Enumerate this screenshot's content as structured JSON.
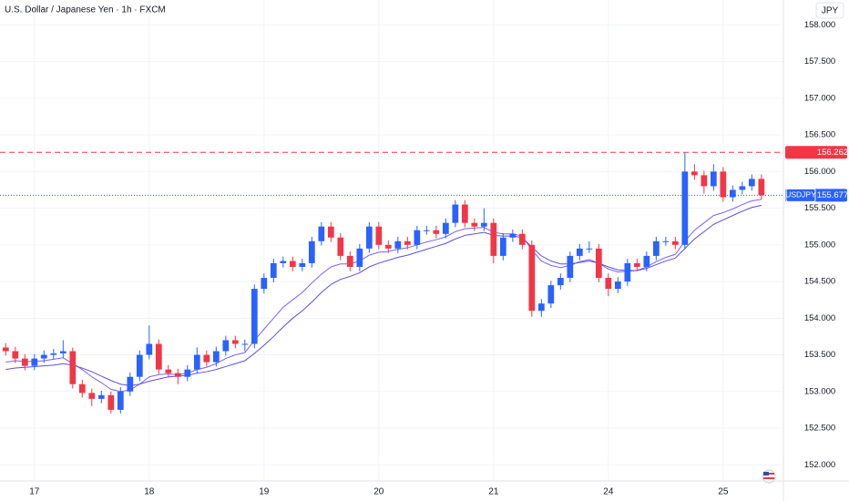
{
  "chart_data": {
    "type": "candlestick",
    "title": "U.S. Dollar / Japanese Yen · 1h · FXCM",
    "currency": "JPY",
    "symbol": "USDJPY",
    "up_color": "#2962ff",
    "down_color": "#f23645",
    "grid": true,
    "xlim": [
      -0.6,
      81.3
    ],
    "ylim": [
      151.78,
      158.34
    ],
    "xticks": [
      {
        "value": 3,
        "label": "17"
      },
      {
        "value": 15,
        "label": "18"
      },
      {
        "value": 27,
        "label": "19"
      },
      {
        "value": 39,
        "label": "20"
      },
      {
        "value": 51,
        "label": "21"
      },
      {
        "value": 63,
        "label": "24"
      },
      {
        "value": 75,
        "label": "25"
      }
    ],
    "yticks": [
      {
        "value": 152,
        "label": "152.000"
      },
      {
        "value": 152.5,
        "label": "152.500"
      },
      {
        "value": 153,
        "label": "153.000"
      },
      {
        "value": 153.5,
        "label": "153.500"
      },
      {
        "value": 154,
        "label": "154.000"
      },
      {
        "value": 154.5,
        "label": "154.500"
      },
      {
        "value": 155,
        "label": "155.000"
      },
      {
        "value": 155.5,
        "label": "155.500"
      },
      {
        "value": 156,
        "label": "156.000"
      },
      {
        "value": 156.5,
        "label": "156.500"
      },
      {
        "value": 157,
        "label": "157.000"
      },
      {
        "value": 157.5,
        "label": "157.500"
      },
      {
        "value": 158,
        "label": "158.000"
      }
    ],
    "ohlc": [
      [
        153.6,
        153.66,
        153.49,
        153.55
      ],
      [
        153.55,
        153.61,
        153.39,
        153.45
      ],
      [
        153.45,
        153.51,
        153.29,
        153.35
      ],
      [
        153.35,
        153.51,
        153.29,
        153.45
      ],
      [
        153.45,
        153.56,
        153.39,
        153.5
      ],
      [
        153.5,
        153.58,
        153.44,
        153.52
      ],
      [
        153.52,
        153.7,
        153.46,
        153.55
      ],
      [
        153.55,
        153.6,
        153.04,
        153.1
      ],
      [
        153.1,
        153.16,
        152.92,
        152.98
      ],
      [
        152.98,
        153.04,
        152.8,
        152.9
      ],
      [
        152.9,
        153.01,
        152.84,
        152.95
      ],
      [
        152.95,
        153.0,
        152.7,
        152.75
      ],
      [
        152.75,
        153.06,
        152.7,
        153.0
      ],
      [
        153.0,
        153.26,
        152.94,
        153.2
      ],
      [
        153.2,
        153.56,
        153.14,
        153.5
      ],
      [
        153.5,
        153.9,
        153.44,
        153.65
      ],
      [
        153.65,
        153.71,
        153.24,
        153.3
      ],
      [
        153.3,
        153.36,
        153.19,
        153.25
      ],
      [
        153.25,
        153.31,
        153.1,
        153.2
      ],
      [
        153.2,
        153.36,
        153.14,
        153.3
      ],
      [
        153.3,
        153.6,
        153.24,
        153.5
      ],
      [
        153.5,
        153.56,
        153.34,
        153.4
      ],
      [
        153.4,
        153.61,
        153.34,
        153.55
      ],
      [
        153.55,
        153.76,
        153.49,
        153.7
      ],
      [
        153.7,
        153.76,
        153.59,
        153.65
      ],
      [
        153.65,
        153.71,
        153.55,
        153.65
      ],
      [
        153.65,
        154.46,
        153.59,
        154.4
      ],
      [
        154.4,
        154.61,
        154.34,
        154.55
      ],
      [
        154.55,
        154.81,
        154.49,
        154.75
      ],
      [
        154.75,
        154.84,
        154.69,
        154.78
      ],
      [
        154.78,
        154.84,
        154.64,
        154.7
      ],
      [
        154.7,
        154.81,
        154.64,
        154.75
      ],
      [
        154.75,
        155.11,
        154.69,
        155.05
      ],
      [
        155.05,
        155.31,
        154.99,
        155.25
      ],
      [
        155.25,
        155.31,
        155.04,
        155.1
      ],
      [
        155.1,
        155.16,
        154.79,
        154.85
      ],
      [
        154.85,
        154.91,
        154.64,
        154.7
      ],
      [
        154.7,
        155.01,
        154.64,
        154.95
      ],
      [
        154.95,
        155.31,
        154.89,
        155.25
      ],
      [
        155.25,
        155.31,
        154.94,
        155.0
      ],
      [
        155.0,
        155.06,
        154.89,
        154.95
      ],
      [
        154.95,
        155.11,
        154.89,
        155.05
      ],
      [
        155.05,
        155.11,
        154.94,
        155.0
      ],
      [
        155.0,
        155.26,
        154.94,
        155.2
      ],
      [
        155.2,
        155.26,
        155.14,
        155.2
      ],
      [
        155.2,
        155.26,
        155.09,
        155.15
      ],
      [
        155.15,
        155.36,
        155.09,
        155.3
      ],
      [
        155.3,
        155.61,
        155.24,
        155.55
      ],
      [
        155.55,
        155.61,
        155.24,
        155.3
      ],
      [
        155.3,
        155.36,
        155.19,
        155.25
      ],
      [
        155.25,
        155.5,
        155.19,
        155.3
      ],
      [
        155.3,
        155.36,
        154.75,
        154.85
      ],
      [
        154.85,
        155.16,
        154.79,
        155.1
      ],
      [
        155.1,
        155.21,
        155.04,
        155.15
      ],
      [
        155.15,
        155.21,
        154.94,
        155.0
      ],
      [
        155.0,
        155.06,
        154.02,
        154.1
      ],
      [
        154.1,
        154.26,
        154.02,
        154.2
      ],
      [
        154.2,
        154.51,
        154.14,
        154.45
      ],
      [
        154.45,
        154.61,
        154.39,
        154.55
      ],
      [
        154.55,
        154.91,
        154.49,
        154.85
      ],
      [
        154.85,
        155.01,
        154.79,
        154.95
      ],
      [
        154.95,
        155.05,
        154.89,
        154.95
      ],
      [
        154.95,
        155.01,
        154.49,
        154.55
      ],
      [
        154.55,
        154.61,
        154.3,
        154.4
      ],
      [
        154.4,
        154.56,
        154.34,
        154.5
      ],
      [
        154.5,
        154.81,
        154.44,
        154.75
      ],
      [
        154.75,
        154.81,
        154.64,
        154.7
      ],
      [
        154.7,
        154.91,
        154.64,
        154.85
      ],
      [
        154.85,
        155.11,
        154.79,
        155.05
      ],
      [
        155.05,
        155.11,
        154.99,
        155.05
      ],
      [
        155.05,
        155.11,
        154.94,
        155.0
      ],
      [
        155.0,
        156.26,
        154.94,
        156.0
      ],
      [
        156.0,
        156.1,
        155.89,
        155.95
      ],
      [
        155.95,
        156.01,
        155.7,
        155.8
      ],
      [
        155.8,
        156.1,
        155.74,
        156.0
      ],
      [
        156.0,
        156.06,
        155.59,
        155.65
      ],
      [
        155.65,
        155.81,
        155.59,
        155.75
      ],
      [
        155.75,
        155.86,
        155.69,
        155.8
      ],
      [
        155.8,
        155.96,
        155.74,
        155.9
      ],
      [
        155.9,
        155.96,
        155.62,
        155.677
      ]
    ],
    "series": [
      {
        "color": "#7b61ff",
        "values": [
          153.4,
          153.42,
          153.41,
          153.41,
          153.42,
          153.44,
          153.46,
          153.38,
          153.3,
          153.2,
          153.12,
          153.03,
          153.0,
          153.02,
          153.1,
          153.2,
          153.23,
          153.24,
          153.23,
          153.25,
          153.3,
          153.33,
          153.38,
          153.45,
          153.5,
          153.53,
          153.7,
          153.85,
          154.0,
          154.15,
          154.25,
          154.35,
          154.48,
          154.6,
          154.7,
          154.74,
          154.74,
          154.78,
          154.86,
          154.9,
          154.91,
          154.94,
          154.96,
          155.0,
          155.04,
          155.07,
          155.11,
          155.18,
          155.22,
          155.23,
          155.24,
          155.17,
          155.15,
          155.15,
          155.12,
          154.93,
          154.78,
          154.72,
          154.69,
          154.72,
          154.77,
          154.8,
          154.75,
          154.67,
          154.63,
          154.64,
          154.65,
          154.7,
          154.77,
          154.83,
          154.87,
          155.05,
          155.2,
          155.3,
          155.4,
          155.44,
          155.49,
          155.55,
          155.6,
          155.62
        ]
      },
      {
        "color": "#5e4fd6",
        "values": [
          153.3,
          153.32,
          153.33,
          153.34,
          153.35,
          153.36,
          153.38,
          153.36,
          153.32,
          153.27,
          153.21,
          153.15,
          153.1,
          153.08,
          153.1,
          153.14,
          153.17,
          153.2,
          153.21,
          153.22,
          153.25,
          153.27,
          153.3,
          153.34,
          153.38,
          153.42,
          153.52,
          153.63,
          153.75,
          153.88,
          154.0,
          154.1,
          154.22,
          154.35,
          154.46,
          154.53,
          154.57,
          154.62,
          154.7,
          154.75,
          154.79,
          154.83,
          154.86,
          154.9,
          154.94,
          154.98,
          155.02,
          155.08,
          155.13,
          155.15,
          155.17,
          155.13,
          155.12,
          155.12,
          155.1,
          154.97,
          154.85,
          154.78,
          154.74,
          154.74,
          154.76,
          154.78,
          154.75,
          154.7,
          154.66,
          154.65,
          154.65,
          154.68,
          154.73,
          154.78,
          154.82,
          154.95,
          155.08,
          155.18,
          155.28,
          155.34,
          155.4,
          155.46,
          155.51,
          155.54
        ]
      }
    ],
    "price_lines": [
      {
        "value": 156.262,
        "color": "#f23645",
        "style": "dashed"
      },
      {
        "value": 155.677,
        "color": "#2962ff",
        "style": "dotted"
      }
    ]
  }
}
